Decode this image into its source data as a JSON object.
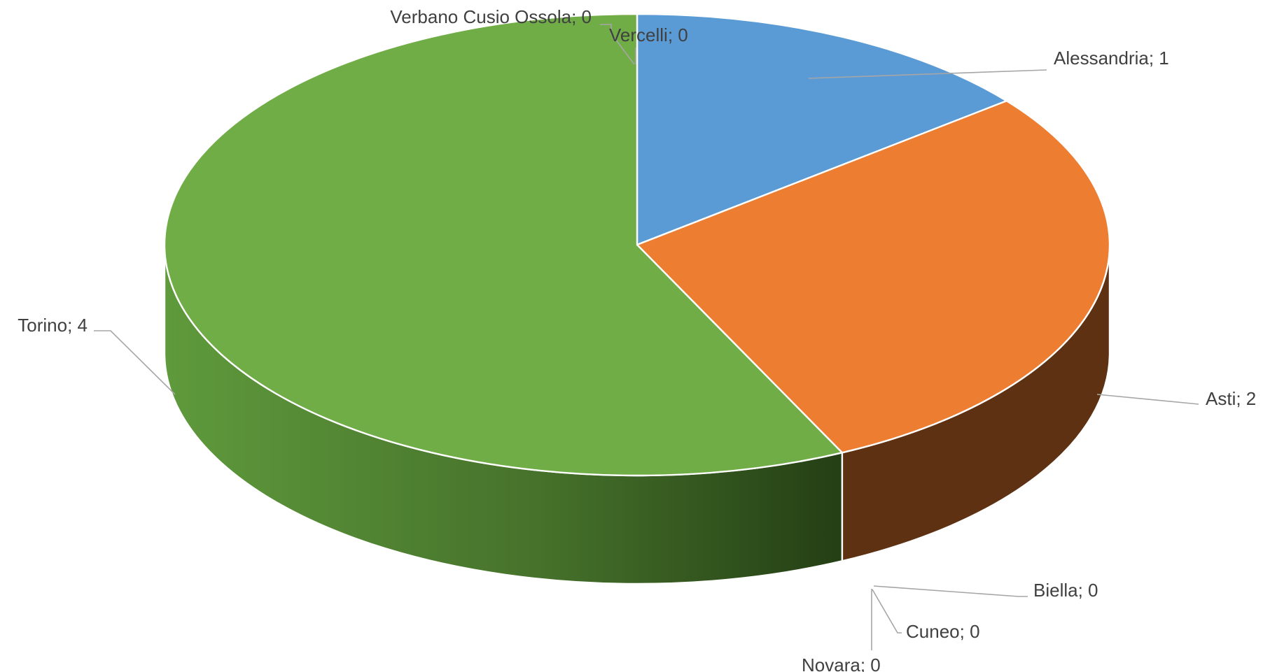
{
  "chart_data": {
    "type": "pie",
    "title": "",
    "style": "3d",
    "categories": [
      "Alessandria",
      "Asti",
      "Biella",
      "Cuneo",
      "Novara",
      "Torino",
      "Verbano Cusio Ossola",
      "Vercelli"
    ],
    "values": [
      1,
      2,
      0,
      0,
      0,
      4,
      0,
      0
    ],
    "data_labels": [
      "Alessandria; 1",
      "Asti; 2",
      "Biella; 0",
      "Cuneo; 0",
      "Novara; 0",
      "Torino; 4",
      "Verbano Cusio Ossola; 0",
      "Vercelli; 0"
    ],
    "colors": [
      "#5b9bd5",
      "#ed7d31",
      "#a5a5a5",
      "#ffc000",
      "#4472c4",
      "#70ad47",
      "#264478",
      "#9e480e"
    ],
    "side_colors": [
      "#2f5f8a",
      "#5e3112",
      "#5a5a5a",
      "#7f6000",
      "#213a66",
      "#36561f",
      "#142440",
      "#4f2407"
    ],
    "legend": "none"
  }
}
